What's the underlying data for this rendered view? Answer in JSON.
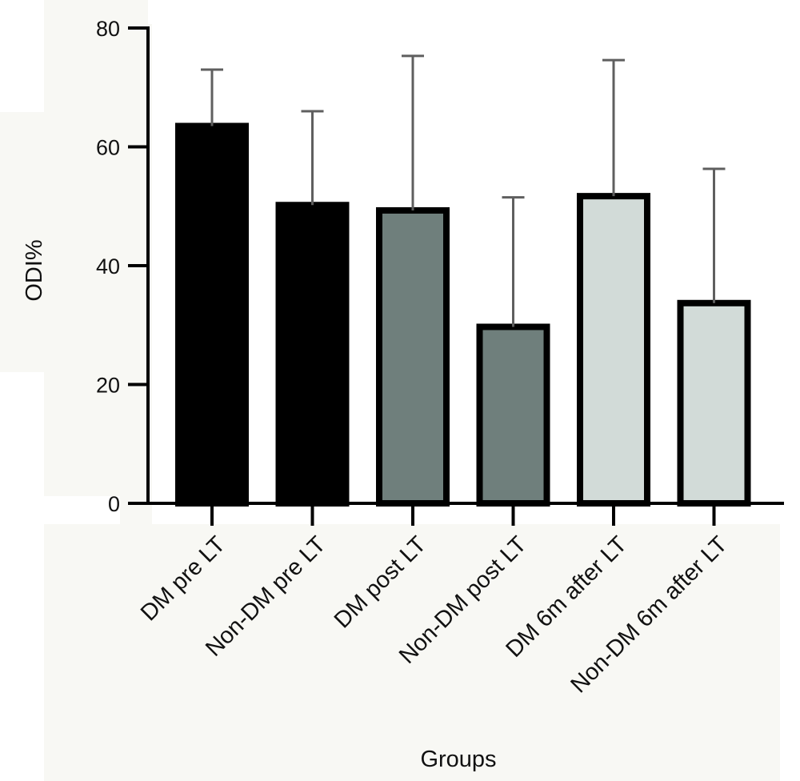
{
  "chart_data": {
    "type": "bar",
    "title": "",
    "xlabel": "Groups",
    "ylabel": "ODI%",
    "ylim": [
      0,
      80
    ],
    "yticks": [
      0,
      20,
      40,
      60,
      80
    ],
    "grid": false,
    "categories": [
      "DM pre LT",
      "Non-DM pre LT",
      "DM post LT",
      "Non-DM post LT",
      "DM 6m after LT",
      "Non-DM 6m after LT"
    ],
    "values": [
      63.5,
      50.2,
      49.3,
      29.7,
      51.7,
      33.7
    ],
    "error_upper": [
      73.0,
      66.0,
      75.3,
      51.5,
      74.6,
      56.3
    ],
    "colors": [
      "#000000",
      "#000000",
      "#6f7f7c",
      "#6f7f7c",
      "#d2dbd8",
      "#d2dbd8"
    ]
  }
}
